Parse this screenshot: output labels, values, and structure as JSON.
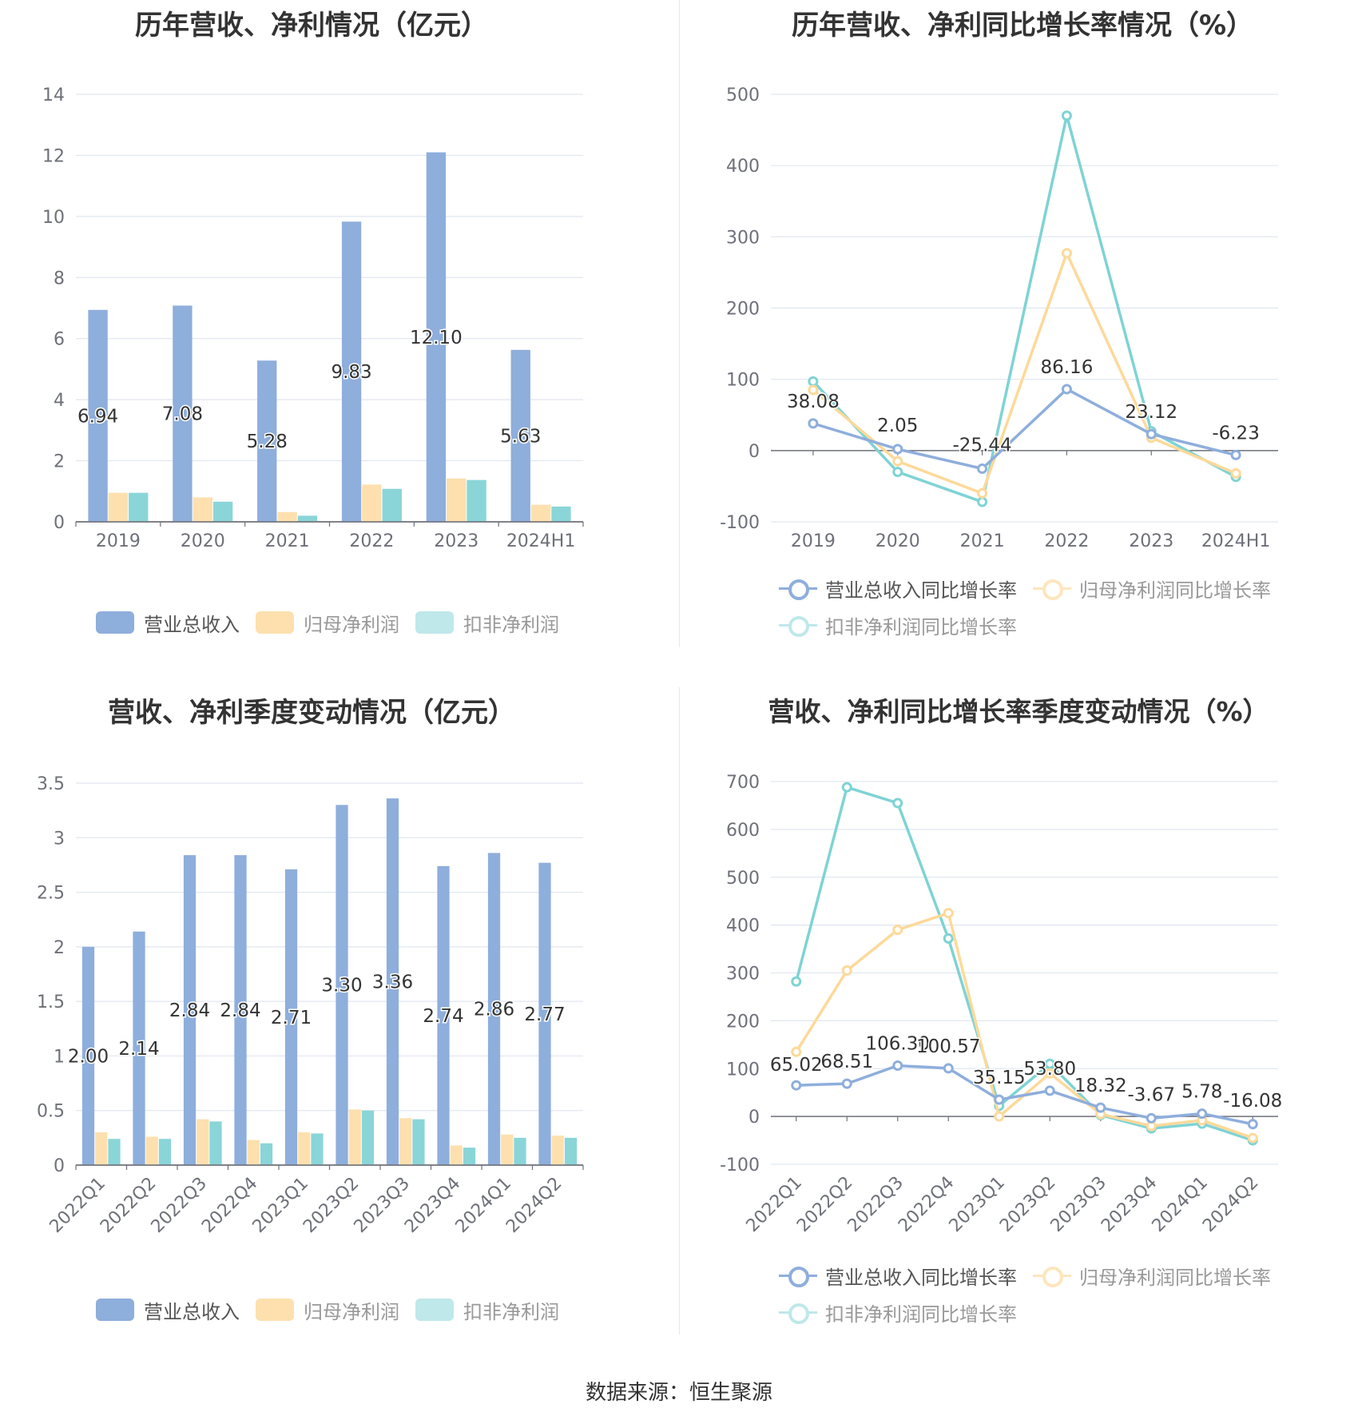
{
  "colors": {
    "revenue": "#8eaedc",
    "net_profit": "#fde0ae",
    "deducted": "#8ad5d8",
    "rev_line": "#8eaedc",
    "np_line": "#fdd99a",
    "ded_line": "#7fd3d4"
  },
  "source": "数据来源：恒生聚源",
  "chart_data": [
    {
      "id": "annual-values",
      "type": "bar",
      "title": "历年营收、净利情况（亿元）",
      "categories": [
        "2019",
        "2020",
        "2021",
        "2022",
        "2023",
        "2024H1"
      ],
      "ylim": [
        0,
        14
      ],
      "yticks": [
        "0",
        "2",
        "4",
        "6",
        "8",
        "10",
        "12",
        "14"
      ],
      "ytick_values": [
        0,
        2,
        4,
        6,
        8,
        10,
        12,
        14
      ],
      "series": [
        {
          "name": "营业总收入",
          "values": [
            6.94,
            7.08,
            5.28,
            9.83,
            12.1,
            5.63
          ]
        },
        {
          "name": "归母净利润",
          "values": [
            0.95,
            0.8,
            0.32,
            1.22,
            1.42,
            0.56
          ]
        },
        {
          "name": "扣非净利润",
          "values": [
            0.95,
            0.66,
            0.2,
            1.08,
            1.37,
            0.5
          ]
        }
      ],
      "data_labels": [
        "6.94",
        "7.08",
        "5.28",
        "9.83",
        "12.10",
        "5.63"
      ],
      "grid": true,
      "legend": "bottom"
    },
    {
      "id": "annual-growth",
      "type": "line",
      "title": "历年营收、净利同比增长率情况（%）",
      "categories": [
        "2019",
        "2020",
        "2021",
        "2022",
        "2023",
        "2024H1"
      ],
      "ylim": [
        -100,
        500
      ],
      "yticks": [
        "-100",
        "0",
        "100",
        "200",
        "300",
        "400",
        "500"
      ],
      "ytick_values": [
        -100,
        0,
        100,
        200,
        300,
        400,
        500
      ],
      "series": [
        {
          "name": "营业总收入同比增长率",
          "values": [
            38.08,
            2.05,
            -25.44,
            86.16,
            23.12,
            -6.23
          ]
        },
        {
          "name": "归母净利润同比增长率",
          "values": [
            85,
            -15,
            -60,
            277,
            18,
            -32
          ]
        },
        {
          "name": "扣非净利润同比增长率",
          "values": [
            97,
            -30,
            -72,
            470,
            27,
            -37
          ]
        }
      ],
      "data_labels": [
        "38.08",
        "2.05",
        "-25.44",
        "86.16",
        "23.12",
        "-6.23"
      ],
      "grid": true,
      "legend": "bottom"
    },
    {
      "id": "quarterly-values",
      "type": "bar",
      "title": "营收、净利季度变动情况（亿元）",
      "categories": [
        "2022Q1",
        "2022Q2",
        "2022Q3",
        "2022Q4",
        "2023Q1",
        "2023Q2",
        "2023Q3",
        "2023Q4",
        "2024Q1",
        "2024Q2"
      ],
      "ylim": [
        0,
        3.5
      ],
      "yticks": [
        "0",
        "0.5",
        "1",
        "1.5",
        "2",
        "2.5",
        "3",
        "3.5"
      ],
      "ytick_values": [
        0,
        0.5,
        1,
        1.5,
        2,
        2.5,
        3,
        3.5
      ],
      "series": [
        {
          "name": "营业总收入",
          "values": [
            2.0,
            2.14,
            2.84,
            2.84,
            2.71,
            3.3,
            3.36,
            2.74,
            2.86,
            2.77
          ]
        },
        {
          "name": "归母净利润",
          "values": [
            0.3,
            0.26,
            0.42,
            0.23,
            0.3,
            0.51,
            0.43,
            0.18,
            0.28,
            0.27
          ]
        },
        {
          "name": "扣非净利润",
          "values": [
            0.24,
            0.24,
            0.4,
            0.2,
            0.29,
            0.5,
            0.42,
            0.16,
            0.25,
            0.25
          ]
        }
      ],
      "data_labels": [
        "2.00",
        "2.14",
        "2.84",
        "2.84",
        "2.71",
        "3.30",
        "3.36",
        "2.74",
        "2.86",
        "2.77"
      ],
      "grid": true,
      "legend": "bottom"
    },
    {
      "id": "quarterly-growth",
      "type": "line",
      "title": "营收、净利同比增长率季度变动情况（%）",
      "categories": [
        "2022Q1",
        "2022Q2",
        "2022Q3",
        "2022Q4",
        "2023Q1",
        "2023Q2",
        "2023Q3",
        "2023Q4",
        "2024Q1",
        "2024Q2"
      ],
      "ylim": [
        -100,
        700
      ],
      "yticks": [
        "-100",
        "0",
        "100",
        "200",
        "300",
        "400",
        "500",
        "600",
        "700"
      ],
      "ytick_values": [
        -100,
        0,
        100,
        200,
        300,
        400,
        500,
        600,
        700
      ],
      "series": [
        {
          "name": "营业总收入同比增长率",
          "values": [
            65.02,
            68.51,
            106.3,
            100.57,
            35.15,
            53.8,
            18.32,
            -3.67,
            5.78,
            -16.08
          ]
        },
        {
          "name": "归母净利润同比增长率",
          "values": [
            135,
            305,
            390,
            425,
            0,
            90,
            5,
            -20,
            -8,
            -45
          ]
        },
        {
          "name": "扣非净利润同比增长率",
          "values": [
            282,
            688,
            655,
            372,
            22,
            110,
            3,
            -25,
            -15,
            -50
          ]
        }
      ],
      "data_labels": [
        "65.02",
        "68.51",
        "106.30",
        "100.57",
        "35.15",
        "53.80",
        "18.32",
        "-3.67",
        "5.78",
        "-16.08"
      ],
      "grid": true,
      "legend": "bottom"
    }
  ]
}
